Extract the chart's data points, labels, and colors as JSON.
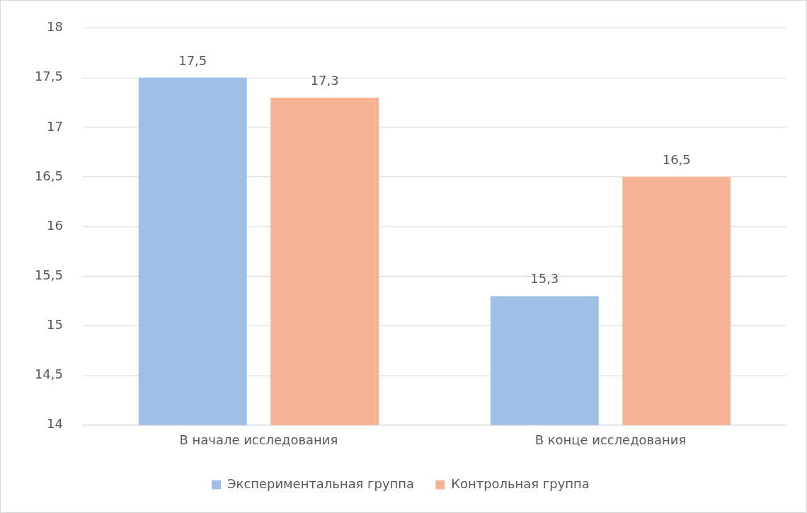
{
  "chart_data": {
    "type": "bar",
    "categories": [
      "В начале исследования",
      "В конце исследования"
    ],
    "series": [
      {
        "name": "Экспериментальная группа",
        "color": "#9fbfe6",
        "values": [
          17.5,
          15.3
        ],
        "value_labels": [
          "17,5",
          "15,3"
        ]
      },
      {
        "name": "Контрольная группа",
        "color": "#f6b396",
        "values": [
          17.3,
          16.5
        ],
        "value_labels": [
          "17,3",
          "16,5"
        ]
      }
    ],
    "ylim": [
      14,
      18
    ],
    "yticks": [
      14,
      {
        "value": 14.5,
        "label": "14,5"
      },
      15,
      {
        "value": 15.5,
        "label": "15,5"
      },
      16,
      {
        "value": 16.5,
        "label": "16,5"
      },
      17,
      {
        "value": 17.5,
        "label": "17,5"
      },
      18
    ],
    "grid": "y",
    "legend": "bottom"
  }
}
